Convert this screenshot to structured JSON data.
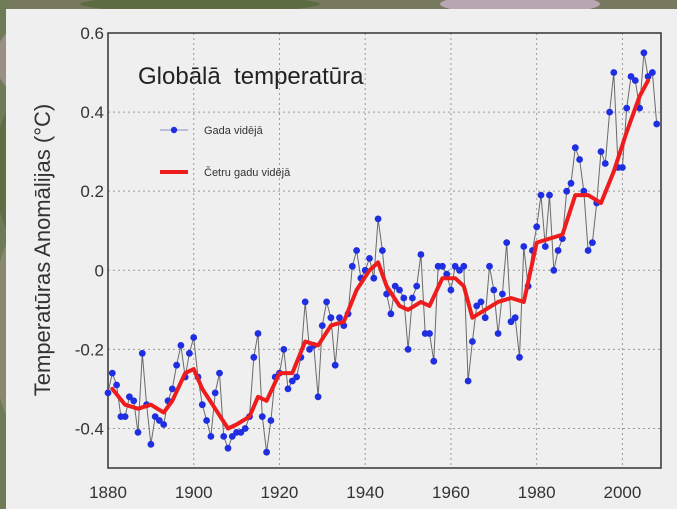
{
  "chart_data": {
    "type": "line",
    "title": "Globālā  temperatūra",
    "ylabel": "Temperatūras Anomālijas (°C)",
    "xlabel": "",
    "xlim": [
      1880,
      2009
    ],
    "ylim": [
      -0.5,
      0.6
    ],
    "x_ticks": [
      "1880",
      "1900",
      "1920",
      "1940",
      "1960",
      "1980",
      "2000"
    ],
    "y_ticks": [
      "-0.4",
      "-0.2",
      "0",
      "0.2",
      "0.4",
      "0.6"
    ],
    "grid": true,
    "legend_position": "top-left",
    "colors": {
      "annual": "#1f2ee0",
      "smoothed": "#ee1c1c",
      "connector": "#6a6a6a"
    },
    "series": [
      {
        "name": "Gada vidējā",
        "style": "line-markers",
        "x": [
          1880,
          1881,
          1882,
          1883,
          1884,
          1885,
          1886,
          1887,
          1888,
          1889,
          1890,
          1891,
          1892,
          1893,
          1894,
          1895,
          1896,
          1897,
          1898,
          1899,
          1900,
          1901,
          1902,
          1903,
          1904,
          1905,
          1906,
          1907,
          1908,
          1909,
          1910,
          1911,
          1912,
          1913,
          1914,
          1915,
          1916,
          1917,
          1918,
          1919,
          1920,
          1921,
          1922,
          1923,
          1924,
          1925,
          1926,
          1927,
          1928,
          1929,
          1930,
          1931,
          1932,
          1933,
          1934,
          1935,
          1936,
          1937,
          1938,
          1939,
          1940,
          1941,
          1942,
          1943,
          1944,
          1945,
          1946,
          1947,
          1948,
          1949,
          1950,
          1951,
          1952,
          1953,
          1954,
          1955,
          1956,
          1957,
          1958,
          1959,
          1960,
          1961,
          1962,
          1963,
          1964,
          1965,
          1966,
          1967,
          1968,
          1969,
          1970,
          1971,
          1972,
          1973,
          1974,
          1975,
          1976,
          1977,
          1978,
          1979,
          1980,
          1981,
          1982,
          1983,
          1984,
          1985,
          1986,
          1987,
          1988,
          1989,
          1990,
          1991,
          1992,
          1993,
          1994,
          1995,
          1996,
          1997,
          1998,
          1999,
          2000,
          2001,
          2002,
          2003,
          2004,
          2005,
          2006,
          2007,
          2008
        ],
        "values": [
          -0.31,
          -0.26,
          -0.29,
          -0.37,
          -0.37,
          -0.32,
          -0.33,
          -0.41,
          -0.21,
          -0.34,
          -0.44,
          -0.37,
          -0.38,
          -0.39,
          -0.33,
          -0.3,
          -0.24,
          -0.19,
          -0.27,
          -0.21,
          -0.17,
          -0.27,
          -0.34,
          -0.38,
          -0.42,
          -0.31,
          -0.26,
          -0.42,
          -0.45,
          -0.42,
          -0.41,
          -0.41,
          -0.4,
          -0.37,
          -0.22,
          -0.16,
          -0.37,
          -0.46,
          -0.38,
          -0.27,
          -0.26,
          -0.2,
          -0.3,
          -0.28,
          -0.27,
          -0.22,
          -0.08,
          -0.2,
          -0.19,
          -0.32,
          -0.14,
          -0.08,
          -0.12,
          -0.24,
          -0.12,
          -0.14,
          -0.11,
          0.01,
          0.05,
          -0.02,
          0.0,
          0.03,
          -0.02,
          0.13,
          0.05,
          -0.06,
          -0.11,
          -0.04,
          -0.05,
          -0.07,
          -0.2,
          -0.07,
          -0.04,
          0.04,
          -0.16,
          -0.16,
          -0.23,
          0.01,
          0.01,
          -0.01,
          -0.05,
          0.01,
          0.0,
          0.01,
          -0.28,
          -0.18,
          -0.09,
          -0.08,
          -0.12,
          0.01,
          -0.05,
          -0.16,
          -0.06,
          0.07,
          -0.13,
          -0.12,
          -0.22,
          0.06,
          -0.04,
          0.05,
          0.11,
          0.19,
          0.06,
          0.19,
          0.0,
          0.05,
          0.08,
          0.2,
          0.22,
          0.31,
          0.28,
          0.2,
          0.05,
          0.07,
          0.17,
          0.3,
          0.27,
          0.4,
          0.5,
          0.26,
          0.26,
          0.41,
          0.49,
          0.48,
          0.41,
          0.55,
          0.49,
          0.5,
          0.37
        ]
      },
      {
        "name": "Četru gadu vidējā",
        "style": "thick-line",
        "x": [
          1881,
          1884,
          1887,
          1890,
          1893,
          1895,
          1898,
          1900,
          1902,
          1905,
          1908,
          1910,
          1913,
          1915,
          1917,
          1920,
          1923,
          1926,
          1929,
          1932,
          1935,
          1938,
          1941,
          1943,
          1945,
          1948,
          1950,
          1953,
          1955,
          1958,
          1961,
          1963,
          1965,
          1968,
          1971,
          1974,
          1977,
          1980,
          1983,
          1986,
          1989,
          1992,
          1995,
          1998,
          2001,
          2004,
          2006
        ],
        "values": [
          -0.3,
          -0.34,
          -0.35,
          -0.34,
          -0.36,
          -0.33,
          -0.26,
          -0.25,
          -0.3,
          -0.35,
          -0.4,
          -0.39,
          -0.37,
          -0.32,
          -0.33,
          -0.26,
          -0.26,
          -0.18,
          -0.19,
          -0.14,
          -0.13,
          -0.05,
          0.0,
          0.02,
          -0.04,
          -0.09,
          -0.1,
          -0.08,
          -0.09,
          -0.02,
          -0.02,
          -0.04,
          -0.12,
          -0.1,
          -0.08,
          -0.07,
          -0.08,
          0.07,
          0.08,
          0.09,
          0.19,
          0.19,
          0.17,
          0.25,
          0.35,
          0.44,
          0.48
        ]
      }
    ]
  }
}
